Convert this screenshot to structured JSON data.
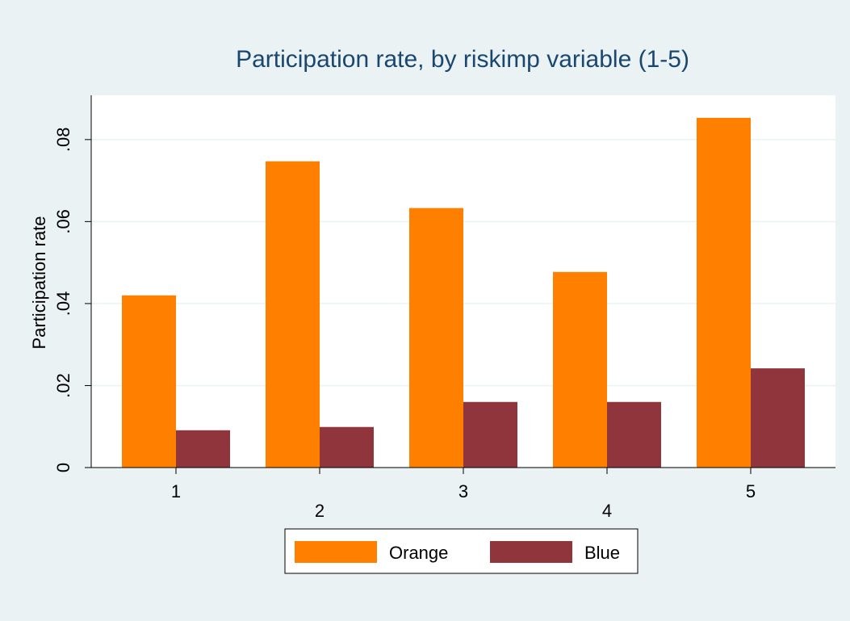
{
  "chart_data": {
    "type": "bar",
    "title": "Participation rate, by riskimp variable (1-5)",
    "y_label": "Participation rate",
    "categories": [
      "1",
      "2",
      "3",
      "4",
      "5"
    ],
    "series": [
      {
        "name": "Orange",
        "color": "#ff7f00",
        "values": [
          0.042,
          0.0747,
          0.0633,
          0.0477,
          0.0853
        ]
      },
      {
        "name": "Blue",
        "color": "#90353b",
        "values": [
          0.0091,
          0.0099,
          0.016,
          0.016,
          0.0242
        ]
      }
    ],
    "ylim": [
      0,
      0.0908
    ],
    "yticks": [
      0,
      {
        "value": 0.02,
        "label": ".02"
      },
      {
        "value": 0.04,
        "label": ".04"
      },
      {
        "value": 0.06,
        "label": ".06"
      },
      {
        "value": 0.08,
        "label": ".08"
      }
    ],
    "grid": true,
    "legend": "bottom"
  }
}
